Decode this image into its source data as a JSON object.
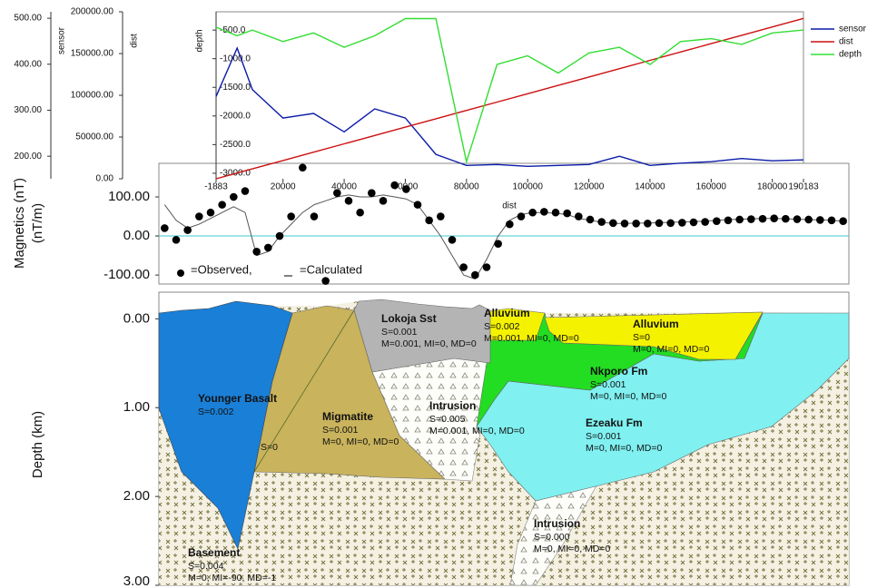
{
  "chart_data": [
    {
      "type": "line",
      "xlabel": "dist",
      "ylabel": "sensor",
      "y2label": "dist",
      "y3label": "depth",
      "x": [
        -1883,
        5000,
        10000,
        20000,
        30000,
        40000,
        50000,
        60000,
        70000,
        80000,
        90000,
        100000,
        110000,
        120000,
        130000,
        140000,
        150000,
        160000,
        170000,
        180000,
        190183
      ],
      "xlim": [
        -1883,
        190183
      ],
      "xticks": [
        -1883,
        20000,
        40000,
        60000,
        80000,
        100000,
        120000,
        140000,
        160000,
        180000,
        190183
      ],
      "ylim": [
        151,
        514
      ],
      "yticks": [
        {
          "value": 200,
          "label": "200.00"
        },
        {
          "value": 300,
          "label": "300.00"
        },
        {
          "value": 400,
          "label": "400.00"
        },
        {
          "value": 500,
          "label": "500.00"
        }
      ],
      "y2lim": [
        0,
        200000
      ],
      "y2ticks": [
        {
          "value": 0,
          "label": "0.00"
        },
        {
          "value": 50000,
          "label": "50000.00"
        },
        {
          "value": 100000,
          "label": "100000.00"
        },
        {
          "value": 150000,
          "label": "150000.00"
        },
        {
          "value": 200000,
          "label": "200000.00"
        }
      ],
      "y3lim": [
        -3096,
        -181
      ],
      "y3ticks": [
        {
          "value": -500,
          "label": "-500.0"
        },
        {
          "value": -1000,
          "label": "-1000.0"
        },
        {
          "value": -1500,
          "label": "-1500.0"
        },
        {
          "value": -2000,
          "label": "-2000.0"
        },
        {
          "value": -2500,
          "label": "-2500.0"
        },
        {
          "value": -3000,
          "label": "-3000.0"
        }
      ],
      "series": [
        {
          "name": "sensor",
          "color": "#0a1aa8",
          "axis": "y",
          "values": [
            330,
            435,
            345,
            283,
            293,
            253,
            303,
            283,
            204,
            180,
            182,
            178,
            180,
            182,
            200,
            180,
            185,
            188,
            195,
            190,
            192
          ]
        },
        {
          "name": "dist",
          "color": "#cc1111",
          "axis": "y2",
          "values": [
            0,
            6883,
            11883,
            21883,
            31883,
            41883,
            51883,
            61883,
            71883,
            81883,
            91883,
            101883,
            111883,
            121883,
            131883,
            141883,
            151883,
            161883,
            171883,
            181883,
            192066
          ]
        },
        {
          "name": "depth",
          "color": "#33dd33",
          "axis": "y3",
          "values": [
            -450,
            -600,
            -500,
            -700,
            -550,
            -800,
            -600,
            -300,
            -300,
            -2800,
            -1100,
            -950,
            -1250,
            -900,
            -800,
            -1100,
            -700,
            -650,
            -750,
            -550,
            -500
          ]
        }
      ]
    },
    {
      "type": "scatter",
      "ylabel": "Magnetics (nT)",
      "ylabel2": "(nT/m)",
      "ylim": [
        -123,
        186
      ],
      "yticks": [
        {
          "value": 100,
          "label": "100.00"
        },
        {
          "value": 0,
          "label": "0.00"
        },
        {
          "value": -100,
          "label": "-100.00"
        }
      ],
      "reference_color": "#40c8c8",
      "series": [
        {
          "name": "=Observed,",
          "color": "#000000",
          "values": [
            20,
            -10,
            15,
            50,
            60,
            80,
            100,
            115,
            -40,
            -30,
            0,
            50,
            175,
            50,
            -115,
            110,
            90,
            60,
            110,
            90,
            130,
            120,
            80,
            40,
            50,
            -10,
            -80,
            -100,
            -80,
            -20,
            30,
            50,
            60,
            62,
            60,
            58,
            50,
            42,
            36,
            33,
            32,
            32,
            32,
            33,
            33,
            34,
            35,
            36,
            38,
            40,
            42,
            43,
            44,
            45,
            44,
            43,
            42,
            41,
            40,
            38
          ]
        },
        {
          "name": "=Calculated",
          "color": "#555555",
          "values": [
            80,
            40,
            20,
            30,
            45,
            60,
            75,
            60,
            -50,
            -40,
            0,
            30,
            60,
            80,
            90,
            100,
            105,
            100,
            100,
            105,
            100,
            95,
            80,
            40,
            0,
            -50,
            -100,
            -110,
            -60,
            0,
            40,
            55,
            60,
            60,
            58,
            55,
            45,
            40,
            35,
            32,
            32,
            33,
            33,
            34,
            35,
            36,
            37,
            38,
            40,
            42,
            43,
            44,
            45,
            45,
            44,
            43,
            42,
            41,
            40,
            38
          ]
        }
      ]
    },
    {
      "type": "section",
      "ylabel": "Depth (km)",
      "ylim": [
        -0.3,
        3.0
      ],
      "yticks": [
        {
          "value": 0,
          "label": "0.00"
        },
        {
          "value": 1,
          "label": "1.00"
        },
        {
          "value": 2,
          "label": "2.00"
        },
        {
          "value": 3,
          "label": "3.00"
        }
      ],
      "bodies": [
        {
          "name": "Younger Basalt",
          "lines": [
            "S=0.002"
          ]
        },
        {
          "name": null,
          "lines": [
            "S=0"
          ]
        },
        {
          "name": "Migmatite",
          "lines": [
            "S=0.001",
            "M=0, MI=0, MD=0"
          ]
        },
        {
          "name": "Lokoja Sst",
          "lines": [
            "S=0.001",
            "M=0.001, MI=0, MD=0"
          ]
        },
        {
          "name": "Intrusion",
          "lines": [
            "S=0.005",
            "M=0.001, MI=0, MD=0"
          ]
        },
        {
          "name": "Alluvium",
          "lines": [
            "S=0.002",
            "M=0.001, MI=0, MD=0"
          ]
        },
        {
          "name": "Alluvium",
          "lines": [
            "S=0",
            "M=0, MI=0, MD=0"
          ]
        },
        {
          "name": "Nkporo Fm",
          "lines": [
            "S=0.001",
            "M=0, MI=0, MD=0"
          ]
        },
        {
          "name": "Ezeaku Fm",
          "lines": [
            "S=0.001",
            "M=0, MI=0, MD=0"
          ]
        },
        {
          "name": "Intrusion",
          "lines": [
            "S=0.000",
            "M=0, MI=0, MD=0"
          ]
        },
        {
          "name": "Basement",
          "lines": [
            "S=0.004",
            "M=0, MI=-90, MD=-1"
          ]
        }
      ]
    }
  ]
}
